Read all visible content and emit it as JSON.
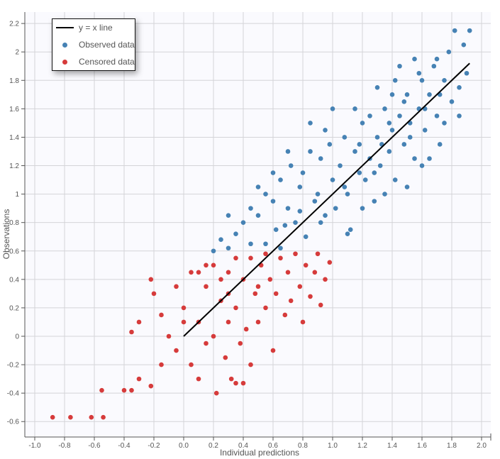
{
  "chart_data": {
    "type": "scatter",
    "xlabel": "Individual predictions",
    "ylabel": "Observations",
    "xlim": [
      -1.0,
      2.05
    ],
    "ylim": [
      -0.71,
      2.28
    ],
    "xticks": [
      "-1.0",
      "-0.8",
      "-0.6",
      "-0.4",
      "-0.2",
      "0.0",
      "0.2",
      "0.4",
      "0.6",
      "0.8",
      "1.0",
      "1.2",
      "1.4",
      "1.6",
      "1.8",
      "2.0"
    ],
    "yticks": [
      "-0.6",
      "-0.4",
      "-0.2",
      "0",
      "0.2",
      "0.4",
      "0.6",
      "0.8",
      "1",
      "1.2",
      "1.4",
      "1.6",
      "1.8",
      "2",
      "2.2"
    ],
    "grid": true,
    "legend_placement": "top-left",
    "legend": [
      "y = x line",
      "Observed data",
      "Censored data"
    ],
    "identity_line": {
      "name": "y = x line",
      "from": [
        0,
        0
      ],
      "to": [
        1.92,
        1.92
      ],
      "color": "#000000"
    },
    "series": [
      {
        "name": "Observed data",
        "color": "#4682b4",
        "points": [
          [
            0.2,
            0.6
          ],
          [
            0.3,
            0.62
          ],
          [
            0.35,
            0.72
          ],
          [
            0.4,
            0.8
          ],
          [
            0.45,
            0.9
          ],
          [
            0.5,
            0.85
          ],
          [
            0.55,
            1.0
          ],
          [
            0.6,
            0.95
          ],
          [
            0.62,
            0.75
          ],
          [
            0.65,
            1.1
          ],
          [
            0.7,
            0.9
          ],
          [
            0.72,
            1.2
          ],
          [
            0.75,
            0.8
          ],
          [
            0.78,
            1.05
          ],
          [
            0.8,
            1.15
          ],
          [
            0.82,
            0.7
          ],
          [
            0.85,
            1.3
          ],
          [
            0.88,
            0.95
          ],
          [
            0.9,
            1.0
          ],
          [
            0.92,
            1.25
          ],
          [
            0.95,
            0.85
          ],
          [
            0.98,
            1.35
          ],
          [
            1.0,
            1.1
          ],
          [
            1.02,
            0.9
          ],
          [
            1.05,
            1.2
          ],
          [
            1.08,
            1.4
          ],
          [
            1.1,
            1.0
          ],
          [
            1.12,
            0.75
          ],
          [
            1.15,
            1.3
          ],
          [
            1.18,
            1.15
          ],
          [
            1.2,
            1.5
          ],
          [
            1.22,
            1.1
          ],
          [
            1.25,
            1.25
          ],
          [
            1.28,
            0.95
          ],
          [
            1.3,
            1.4
          ],
          [
            1.32,
            1.2
          ],
          [
            1.35,
            1.6
          ],
          [
            1.38,
            1.3
          ],
          [
            1.4,
            1.45
          ],
          [
            1.42,
            1.1
          ],
          [
            1.45,
            1.55
          ],
          [
            1.48,
            1.35
          ],
          [
            1.5,
            1.7
          ],
          [
            1.52,
            1.5
          ],
          [
            1.55,
            1.25
          ],
          [
            1.58,
            1.6
          ],
          [
            1.6,
            1.8
          ],
          [
            1.62,
            1.45
          ],
          [
            1.65,
            1.7
          ],
          [
            1.68,
            1.9
          ],
          [
            1.7,
            1.55
          ],
          [
            1.72,
            1.35
          ],
          [
            1.75,
            1.8
          ],
          [
            1.78,
            2.0
          ],
          [
            1.8,
            1.65
          ],
          [
            1.82,
            2.15
          ],
          [
            1.85,
            1.75
          ],
          [
            1.88,
            2.05
          ],
          [
            1.9,
            1.85
          ],
          [
            1.92,
            2.15
          ],
          [
            1.6,
            1.2
          ],
          [
            1.5,
            1.05
          ],
          [
            1.4,
            1.7
          ],
          [
            1.3,
            1.75
          ],
          [
            1.25,
            1.55
          ],
          [
            1.45,
            1.9
          ],
          [
            1.55,
            1.95
          ],
          [
            1.65,
            1.25
          ],
          [
            1.75,
            1.5
          ],
          [
            0.7,
            1.3
          ],
          [
            0.6,
            1.15
          ],
          [
            0.5,
            1.05
          ],
          [
            0.45,
            0.65
          ],
          [
            0.55,
            0.65
          ],
          [
            0.65,
            0.62
          ],
          [
            0.3,
            0.85
          ],
          [
            0.25,
            0.68
          ],
          [
            1.0,
            1.6
          ],
          [
            0.95,
            1.45
          ],
          [
            1.1,
            0.72
          ],
          [
            1.2,
            0.9
          ],
          [
            1.35,
            1.0
          ],
          [
            1.15,
            1.6
          ],
          [
            0.85,
            1.5
          ],
          [
            1.85,
            1.55
          ],
          [
            1.7,
            1.95
          ],
          [
            1.58,
            1.85
          ],
          [
            1.48,
            1.65
          ],
          [
            1.38,
            1.5
          ],
          [
            1.42,
            1.8
          ],
          [
            1.52,
            1.4
          ],
          [
            1.62,
            1.6
          ],
          [
            1.72,
            1.7
          ],
          [
            1.33,
            1.35
          ],
          [
            1.28,
            1.15
          ],
          [
            1.18,
            1.35
          ],
          [
            1.08,
            1.05
          ],
          [
            0.92,
            0.8
          ],
          [
            0.78,
            0.88
          ],
          [
            0.68,
            0.78
          ]
        ]
      },
      {
        "name": "Censored data",
        "color": "#d63b3b",
        "points": [
          [
            -0.88,
            -0.57
          ],
          [
            -0.76,
            -0.57
          ],
          [
            -0.62,
            -0.57
          ],
          [
            -0.54,
            -0.57
          ],
          [
            -0.55,
            -0.38
          ],
          [
            -0.4,
            -0.38
          ],
          [
            -0.35,
            -0.38
          ],
          [
            -0.3,
            -0.3
          ],
          [
            -0.22,
            -0.35
          ],
          [
            -0.35,
            0.03
          ],
          [
            -0.3,
            0.1
          ],
          [
            -0.2,
            0.3
          ],
          [
            -0.22,
            0.4
          ],
          [
            -0.15,
            0.15
          ],
          [
            -0.1,
            0.0
          ],
          [
            -0.05,
            -0.1
          ],
          [
            0.0,
            0.2
          ],
          [
            0.05,
            0.45
          ],
          [
            0.05,
            -0.2
          ],
          [
            0.1,
            -0.3
          ],
          [
            0.1,
            0.1
          ],
          [
            0.15,
            0.35
          ],
          [
            0.15,
            -0.05
          ],
          [
            0.2,
            0.5
          ],
          [
            0.2,
            0.0
          ],
          [
            0.22,
            -0.4
          ],
          [
            0.25,
            0.25
          ],
          [
            0.28,
            -0.15
          ],
          [
            0.3,
            0.45
          ],
          [
            0.3,
            0.1
          ],
          [
            0.32,
            -0.3
          ],
          [
            0.35,
            0.55
          ],
          [
            0.35,
            0.2
          ],
          [
            0.38,
            -0.05
          ],
          [
            0.4,
            0.4
          ],
          [
            0.42,
            0.05
          ],
          [
            0.45,
            0.55
          ],
          [
            0.45,
            -0.2
          ],
          [
            0.48,
            0.3
          ],
          [
            0.5,
            0.1
          ],
          [
            0.52,
            0.5
          ],
          [
            0.55,
            0.2
          ],
          [
            0.55,
            0.58
          ],
          [
            0.58,
            0.4
          ],
          [
            0.6,
            -0.1
          ],
          [
            0.62,
            0.3
          ],
          [
            0.65,
            0.55
          ],
          [
            0.68,
            0.15
          ],
          [
            0.7,
            0.45
          ],
          [
            0.72,
            0.25
          ],
          [
            0.75,
            0.58
          ],
          [
            0.78,
            0.35
          ],
          [
            0.8,
            0.1
          ],
          [
            0.82,
            0.5
          ],
          [
            0.85,
            0.28
          ],
          [
            0.88,
            0.45
          ],
          [
            0.9,
            0.58
          ],
          [
            0.92,
            0.22
          ],
          [
            0.95,
            0.4
          ],
          [
            0.98,
            0.52
          ],
          [
            0.25,
            0.4
          ],
          [
            0.15,
            0.5
          ],
          [
            0.1,
            0.45
          ],
          [
            -0.05,
            0.35
          ],
          [
            0.4,
            -0.33
          ],
          [
            0.35,
            -0.33
          ],
          [
            0.0,
            0.1
          ],
          [
            -0.15,
            -0.2
          ],
          [
            0.3,
            0.3
          ],
          [
            0.5,
            0.35
          ]
        ]
      }
    ]
  }
}
